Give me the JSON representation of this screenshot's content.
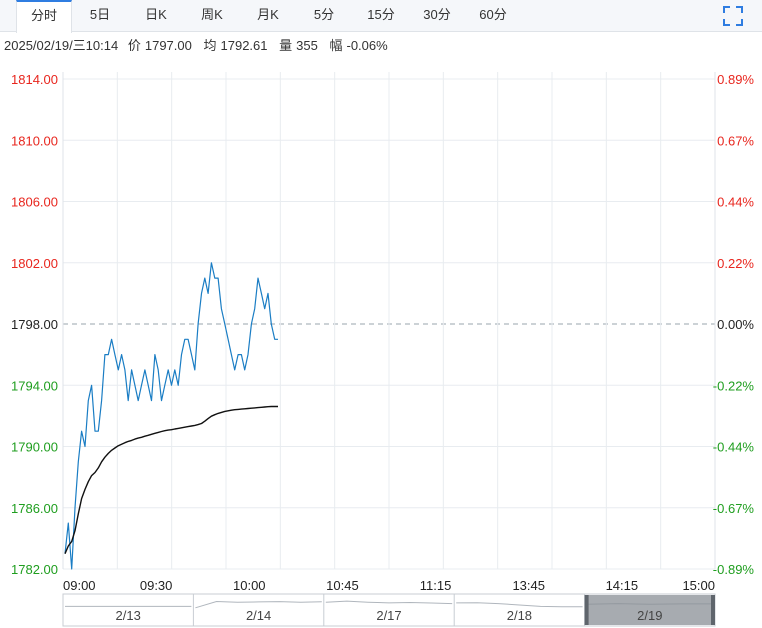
{
  "tabs": [
    {
      "label": "分时",
      "active": true
    },
    {
      "label": "5日"
    },
    {
      "label": "日K"
    },
    {
      "label": "周K"
    },
    {
      "label": "月K"
    },
    {
      "label": "5分"
    },
    {
      "label": "15分"
    },
    {
      "label": "30分"
    },
    {
      "label": "60分"
    }
  ],
  "info": {
    "datetime": "2025/02/19/三10:14",
    "price_label": "价",
    "price": "1797.00",
    "avg_label": "均",
    "avg": "1792.61",
    "volume_label": "量",
    "volume": "355",
    "change_label": "幅",
    "change": "-0.06%"
  },
  "colors": {
    "up": "#e8261e",
    "down": "#1f9e1f",
    "price_line": "#1a7dc4",
    "avg_line": "#111111",
    "grid": "#e8ecf0",
    "accent": "#2f7de1"
  },
  "chart_data": {
    "type": "line",
    "prev_close": 1798.0,
    "ylim": [
      1782,
      1814
    ],
    "y_ticks_left": [
      "1814.00",
      "1810.00",
      "1806.00",
      "1802.00",
      "1798.00",
      "1794.00",
      "1790.00",
      "1786.00",
      "1782.00"
    ],
    "y_ticks_right": [
      "0.89%",
      "0.67%",
      "0.44%",
      "0.22%",
      "0.00%",
      "-0.22%",
      "-0.44%",
      "-0.67%",
      "-0.89%"
    ],
    "x_ticks": [
      "09:00",
      "09:30",
      "10:00",
      "10:45",
      "11:15",
      "13:45",
      "14:15",
      "15:00"
    ],
    "series": [
      {
        "key": "price",
        "values": [
          1783,
          1785,
          1782,
          1786,
          1789,
          1791,
          1790,
          1793,
          1794,
          1791,
          1791,
          1793,
          1796,
          1796,
          1797,
          1796,
          1795,
          1796,
          1795,
          1793,
          1795,
          1794,
          1793,
          1794,
          1795,
          1794,
          1793,
          1796,
          1795,
          1793,
          1794,
          1795,
          1794,
          1795,
          1794,
          1796,
          1797,
          1797,
          1796,
          1795,
          1798,
          1800,
          1801,
          1800,
          1802,
          1801,
          1801,
          1799,
          1798,
          1797,
          1796,
          1795,
          1796,
          1796,
          1795,
          1796,
          1798,
          1799,
          1801,
          1800,
          1799,
          1800,
          1798,
          1797,
          1797
        ]
      },
      {
        "key": "avg",
        "values": [
          1783,
          1783.5,
          1783.8,
          1784.5,
          1785.6,
          1786.6,
          1787.2,
          1787.7,
          1788.1,
          1788.3,
          1788.6,
          1789,
          1789.3,
          1789.55,
          1789.75,
          1789.9,
          1790.05,
          1790.15,
          1790.25,
          1790.33,
          1790.4,
          1790.48,
          1790.55,
          1790.6,
          1790.67,
          1790.73,
          1790.8,
          1790.86,
          1790.92,
          1790.98,
          1791.03,
          1791.07,
          1791.1,
          1791.14,
          1791.18,
          1791.22,
          1791.26,
          1791.3,
          1791.34,
          1791.38,
          1791.43,
          1791.5,
          1791.65,
          1791.82,
          1791.98,
          1792.08,
          1792.16,
          1792.23,
          1792.29,
          1792.33,
          1792.37,
          1792.4,
          1792.42,
          1792.44,
          1792.46,
          1792.48,
          1792.5,
          1792.52,
          1792.54,
          1792.56,
          1792.58,
          1792.6,
          1792.61,
          1792.61,
          1792.61
        ]
      }
    ]
  },
  "navigator": {
    "dates": [
      "2/13",
      "2/14",
      "2/17",
      "2/18",
      "2/19"
    ]
  }
}
